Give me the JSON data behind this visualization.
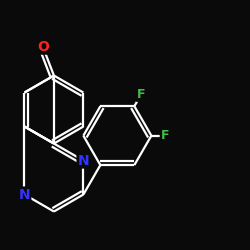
{
  "background_color": "#0a0a0a",
  "bond_color": "#ffffff",
  "atom_colors": {
    "O": "#ff2222",
    "N": "#3333ff",
    "F": "#44bb44"
  },
  "bond_width": 1.6,
  "figsize": [
    2.5,
    2.5
  ],
  "dpi": 100
}
